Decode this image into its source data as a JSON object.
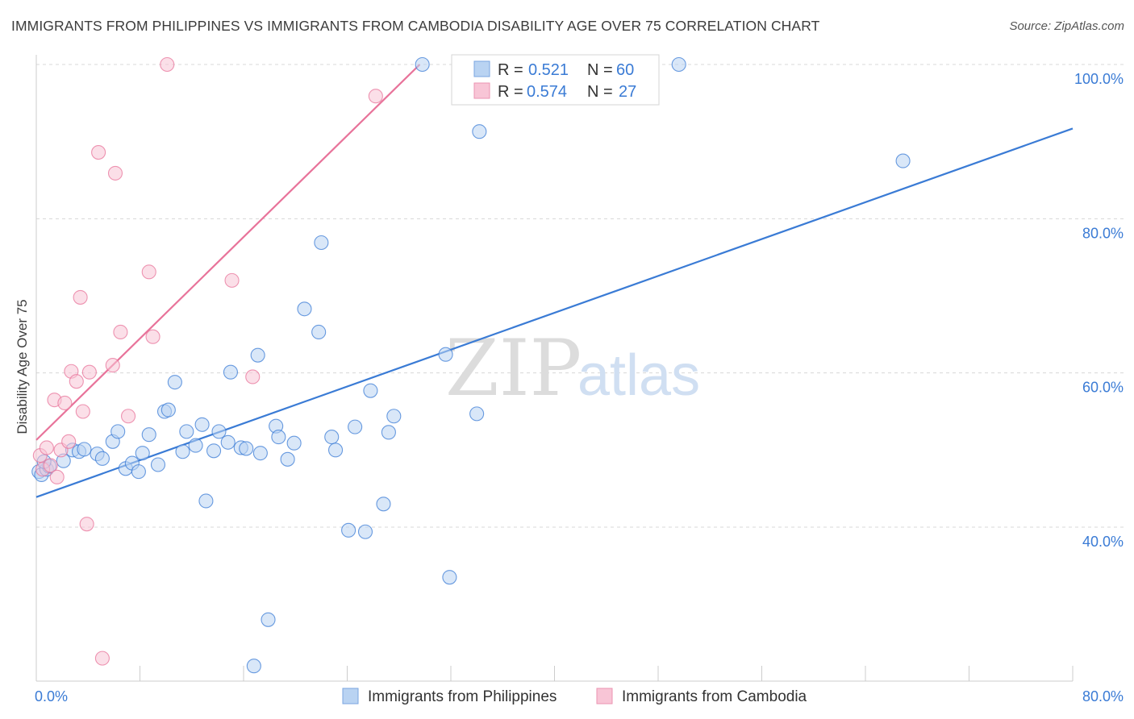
{
  "title": "IMMIGRANTS FROM PHILIPPINES VS IMMIGRANTS FROM CAMBODIA DISABILITY AGE OVER 75 CORRELATION CHART",
  "source": "Source: ZipAtlas.com",
  "watermark": {
    "zip": "ZIP",
    "atlas": "atlas"
  },
  "colors": {
    "blue": "#3a7bd5",
    "blue_fill": "#b9d3f2",
    "pink": "#e8739a",
    "pink_fill": "#f8c5d6",
    "grid": "#d8d8d8"
  },
  "legend": {
    "r_label": "R =",
    "n_label": "N =",
    "series": [
      {
        "r": "0.521",
        "n": "60"
      },
      {
        "r": "0.574",
        "n": "27"
      }
    ]
  },
  "chart_data": {
    "type": "scatter",
    "xlabel": "",
    "ylabel": "Disability Age Over 75",
    "xlim": [
      0,
      80
    ],
    "ylim": [
      20,
      100
    ],
    "x_tick_labels": [
      {
        "x": 0,
        "label": "0.0%"
      },
      {
        "x": 80,
        "label": "80.0%"
      }
    ],
    "y_tick_labels": [
      {
        "y": 100,
        "label": "100.0%"
      },
      {
        "y": 80,
        "label": "80.0%"
      },
      {
        "y": 60,
        "label": "60.0%"
      },
      {
        "y": 40,
        "label": "40.0%"
      }
    ],
    "grid": true,
    "legend_position": "top-center",
    "series": [
      {
        "name": "Immigrants from Philippines",
        "color": "#3a7bd5",
        "trend": {
          "x0": 0,
          "y0": 43.9,
          "x1": 80,
          "y1": 91.7
        },
        "points": [
          [
            0.2,
            47.2
          ],
          [
            0.4,
            46.8
          ],
          [
            0.8,
            47.5
          ],
          [
            1.0,
            47.9
          ],
          [
            2.1,
            48.6
          ],
          [
            2.8,
            50.0
          ],
          [
            3.3,
            49.8
          ],
          [
            3.7,
            50.1
          ],
          [
            4.7,
            49.5
          ],
          [
            5.1,
            48.9
          ],
          [
            5.9,
            51.1
          ],
          [
            6.3,
            52.4
          ],
          [
            6.9,
            47.6
          ],
          [
            7.4,
            48.3
          ],
          [
            7.9,
            47.2
          ],
          [
            8.2,
            49.6
          ],
          [
            8.7,
            52.0
          ],
          [
            9.4,
            48.1
          ],
          [
            9.9,
            55.0
          ],
          [
            10.2,
            55.2
          ],
          [
            10.7,
            58.8
          ],
          [
            11.3,
            49.8
          ],
          [
            11.6,
            52.4
          ],
          [
            12.3,
            50.6
          ],
          [
            12.8,
            53.3
          ],
          [
            13.1,
            43.4
          ],
          [
            13.7,
            49.9
          ],
          [
            14.1,
            52.4
          ],
          [
            14.8,
            51.0
          ],
          [
            15.0,
            60.1
          ],
          [
            15.8,
            50.3
          ],
          [
            16.2,
            50.2
          ],
          [
            17.1,
            62.3
          ],
          [
            17.3,
            49.6
          ],
          [
            17.9,
            28.0
          ],
          [
            18.5,
            53.1
          ],
          [
            18.7,
            51.7
          ],
          [
            19.4,
            48.8
          ],
          [
            19.9,
            50.9
          ],
          [
            20.7,
            68.3
          ],
          [
            21.8,
            65.3
          ],
          [
            22.0,
            76.9
          ],
          [
            22.8,
            51.7
          ],
          [
            23.1,
            50.0
          ],
          [
            24.1,
            39.6
          ],
          [
            24.6,
            53.0
          ],
          [
            25.4,
            39.4
          ],
          [
            25.8,
            57.7
          ],
          [
            26.8,
            43.0
          ],
          [
            27.2,
            52.3
          ],
          [
            27.6,
            54.4
          ],
          [
            16.8,
            22.0
          ],
          [
            29.8,
            100.0
          ],
          [
            31.6,
            62.4
          ],
          [
            31.9,
            33.5
          ],
          [
            34.0,
            54.7
          ],
          [
            34.2,
            91.3
          ],
          [
            49.6,
            100.0
          ],
          [
            66.9,
            87.5
          ],
          [
            0.6,
            48.5
          ]
        ]
      },
      {
        "name": "Immigrants from Cambodia",
        "color": "#e8739a",
        "trend": {
          "x0": 0,
          "y0": 51.3,
          "x1": 29.6,
          "y1": 100.0
        },
        "points": [
          [
            0.3,
            49.3
          ],
          [
            0.5,
            47.5
          ],
          [
            0.8,
            50.3
          ],
          [
            1.1,
            48.0
          ],
          [
            1.4,
            56.5
          ],
          [
            1.6,
            46.5
          ],
          [
            1.9,
            50.0
          ],
          [
            2.2,
            56.1
          ],
          [
            2.5,
            51.1
          ],
          [
            2.7,
            60.2
          ],
          [
            3.1,
            58.9
          ],
          [
            3.4,
            69.8
          ],
          [
            3.6,
            55.0
          ],
          [
            3.9,
            40.4
          ],
          [
            4.1,
            60.1
          ],
          [
            4.8,
            88.6
          ],
          [
            5.1,
            23.0
          ],
          [
            5.9,
            61.0
          ],
          [
            6.1,
            85.9
          ],
          [
            6.5,
            65.3
          ],
          [
            7.1,
            54.4
          ],
          [
            8.7,
            73.1
          ],
          [
            9.0,
            64.7
          ],
          [
            10.1,
            100.0
          ],
          [
            15.1,
            72.0
          ],
          [
            16.7,
            59.5
          ],
          [
            26.2,
            95.9
          ]
        ]
      }
    ]
  }
}
